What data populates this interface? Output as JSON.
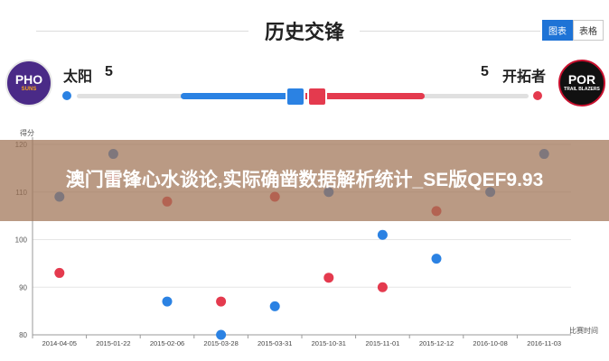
{
  "page": {
    "title": "历史交锋"
  },
  "view_toggle": {
    "chart_label": "图表",
    "table_label": "表格",
    "active": "chart"
  },
  "teams": {
    "left": {
      "logo_abbr": "PHO",
      "logo_sub": "SUNS",
      "name": "太阳",
      "score": "5",
      "color": "#2b82e3"
    },
    "right": {
      "logo_abbr": "POR",
      "logo_sub": "TRAIL BLAZERS",
      "name": "开拓者",
      "score": "5",
      "color": "#e43a4e"
    }
  },
  "banner": {
    "text": "澳门雷锋心水谈论,实际确凿数据解析统计_SE版QEF9.93"
  },
  "chart_data": {
    "type": "scatter",
    "ylabel": "得分",
    "xlabel": "比赛时间",
    "ylim": [
      80,
      120
    ],
    "yticks": [
      80,
      90,
      100,
      110,
      120
    ],
    "categories": [
      "2014-04-05",
      "2015-01-22",
      "2015-02-06",
      "2015-03-28",
      "2015-03-31",
      "2015-10-31",
      "2015-11-01",
      "2015-12-12",
      "2016-10-08",
      "2016-11-03"
    ],
    "series": [
      {
        "name": "太阳",
        "color": "#2b82e3",
        "values": [
          109,
          118,
          87,
          80,
          86,
          110,
          101,
          96,
          110,
          118
        ]
      },
      {
        "name": "开拓者",
        "color": "#e43a4e",
        "values": [
          93,
          113,
          108,
          87,
          109,
          92,
          90,
          106,
          null,
          null
        ]
      }
    ]
  }
}
